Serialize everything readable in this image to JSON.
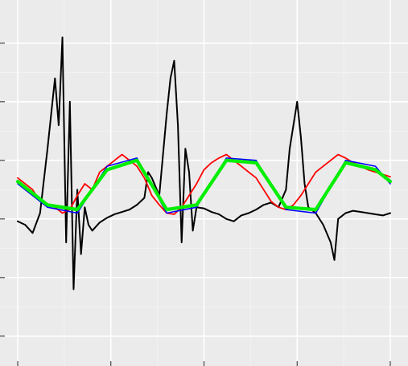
{
  "chart_data": {
    "type": "line",
    "title": "",
    "xlabel": "",
    "ylabel": "",
    "grid": true,
    "legend": "none",
    "x_range": [
      0,
      100
    ],
    "y_range": [
      -1.2,
      1.8
    ],
    "series": [
      {
        "color": "#000000",
        "style": "noisy-trace",
        "points": [
          [
            0,
            -0.02
          ],
          [
            2,
            -0.05
          ],
          [
            4,
            -0.12
          ],
          [
            6,
            0.05
          ],
          [
            8,
            0.6
          ],
          [
            9,
            0.9
          ],
          [
            10,
            1.2
          ],
          [
            11,
            0.8
          ],
          [
            12,
            1.55
          ],
          [
            13,
            -0.2
          ],
          [
            14,
            1.0
          ],
          [
            15,
            -0.6
          ],
          [
            16,
            0.25
          ],
          [
            17,
            -0.3
          ],
          [
            18,
            0.1
          ],
          [
            19,
            -0.05
          ],
          [
            20,
            -0.1
          ],
          [
            22,
            -0.03
          ],
          [
            24,
            0.01
          ],
          [
            26,
            0.04
          ],
          [
            28,
            0.06
          ],
          [
            30,
            0.08
          ],
          [
            32,
            0.12
          ],
          [
            34,
            0.18
          ],
          [
            35,
            0.4
          ],
          [
            36,
            0.35
          ],
          [
            38,
            0.2
          ],
          [
            40,
            0.9
          ],
          [
            41,
            1.2
          ],
          [
            42,
            1.35
          ],
          [
            43,
            0.8
          ],
          [
            44,
            -0.2
          ],
          [
            45,
            0.6
          ],
          [
            46,
            0.4
          ],
          [
            47,
            -0.1
          ],
          [
            48,
            0.1
          ],
          [
            50,
            0.09
          ],
          [
            52,
            0.06
          ],
          [
            54,
            0.04
          ],
          [
            56,
            0.0
          ],
          [
            58,
            -0.02
          ],
          [
            60,
            0.03
          ],
          [
            62,
            0.05
          ],
          [
            64,
            0.08
          ],
          [
            66,
            0.12
          ],
          [
            68,
            0.14
          ],
          [
            70,
            0.1
          ],
          [
            72,
            0.25
          ],
          [
            73,
            0.6
          ],
          [
            74,
            0.8
          ],
          [
            75,
            1.0
          ],
          [
            76,
            0.7
          ],
          [
            77,
            0.3
          ],
          [
            78,
            0.1
          ],
          [
            80,
            0.05
          ],
          [
            82,
            -0.05
          ],
          [
            84,
            -0.2
          ],
          [
            85,
            -0.35
          ],
          [
            86,
            0.0
          ],
          [
            88,
            0.05
          ],
          [
            90,
            0.07
          ],
          [
            92,
            0.06
          ],
          [
            94,
            0.05
          ],
          [
            96,
            0.04
          ],
          [
            98,
            0.03
          ],
          [
            100,
            0.05
          ]
        ]
      },
      {
        "color": "#ff0000",
        "style": "jagged",
        "points": [
          [
            0,
            0.35
          ],
          [
            2,
            0.3
          ],
          [
            4,
            0.25
          ],
          [
            6,
            0.15
          ],
          [
            8,
            0.12
          ],
          [
            10,
            0.1
          ],
          [
            12,
            0.05
          ],
          [
            14,
            0.08
          ],
          [
            16,
            0.2
          ],
          [
            18,
            0.3
          ],
          [
            20,
            0.25
          ],
          [
            22,
            0.4
          ],
          [
            24,
            0.45
          ],
          [
            26,
            0.5
          ],
          [
            28,
            0.55
          ],
          [
            30,
            0.5
          ],
          [
            32,
            0.45
          ],
          [
            34,
            0.35
          ],
          [
            36,
            0.2
          ],
          [
            38,
            0.12
          ],
          [
            40,
            0.05
          ],
          [
            42,
            0.04
          ],
          [
            44,
            0.1
          ],
          [
            46,
            0.2
          ],
          [
            48,
            0.3
          ],
          [
            50,
            0.42
          ],
          [
            52,
            0.48
          ],
          [
            54,
            0.52
          ],
          [
            56,
            0.55
          ],
          [
            58,
            0.5
          ],
          [
            60,
            0.45
          ],
          [
            62,
            0.4
          ],
          [
            64,
            0.35
          ],
          [
            66,
            0.25
          ],
          [
            68,
            0.15
          ],
          [
            70,
            0.1
          ],
          [
            72,
            0.08
          ],
          [
            74,
            0.12
          ],
          [
            76,
            0.2
          ],
          [
            78,
            0.3
          ],
          [
            80,
            0.4
          ],
          [
            82,
            0.45
          ],
          [
            84,
            0.5
          ],
          [
            86,
            0.55
          ],
          [
            88,
            0.52
          ],
          [
            90,
            0.48
          ],
          [
            92,
            0.45
          ],
          [
            94,
            0.42
          ],
          [
            96,
            0.4
          ],
          [
            98,
            0.38
          ],
          [
            100,
            0.36
          ]
        ]
      },
      {
        "color": "#0000ff",
        "style": "smooth",
        "points": [
          [
            0,
            0.3
          ],
          [
            8,
            0.1
          ],
          [
            16,
            0.05
          ],
          [
            24,
            0.45
          ],
          [
            32,
            0.52
          ],
          [
            40,
            0.05
          ],
          [
            48,
            0.1
          ],
          [
            56,
            0.52
          ],
          [
            64,
            0.5
          ],
          [
            72,
            0.08
          ],
          [
            80,
            0.05
          ],
          [
            88,
            0.5
          ],
          [
            96,
            0.45
          ],
          [
            100,
            0.3
          ]
        ]
      },
      {
        "color": "#00ee00",
        "style": "smooth-thick",
        "points": [
          [
            0,
            0.32
          ],
          [
            8,
            0.12
          ],
          [
            16,
            0.08
          ],
          [
            24,
            0.42
          ],
          [
            32,
            0.5
          ],
          [
            40,
            0.08
          ],
          [
            48,
            0.12
          ],
          [
            56,
            0.5
          ],
          [
            64,
            0.48
          ],
          [
            72,
            0.1
          ],
          [
            80,
            0.08
          ],
          [
            88,
            0.48
          ],
          [
            96,
            0.42
          ],
          [
            100,
            0.32
          ]
        ]
      }
    ]
  }
}
